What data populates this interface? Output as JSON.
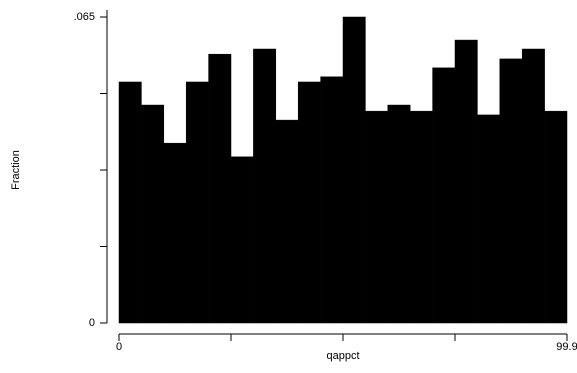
{
  "chart_data": {
    "type": "histogram",
    "y_label": "Fraction",
    "x_label": "qappct",
    "bins": [
      0,
      4.995,
      9.99,
      14.985,
      19.98,
      24.975,
      29.97,
      34.965,
      39.96,
      44.955,
      49.95,
      54.945,
      59.94,
      64.935,
      69.93,
      74.925,
      79.92,
      84.915,
      89.91,
      94.905,
      99.9
    ],
    "values": [
      0.0512,
      0.0463,
      0.0382,
      0.0512,
      0.0571,
      0.0353,
      0.0582,
      0.0431,
      0.0512,
      0.0523,
      0.065,
      0.045,
      0.0463,
      0.045,
      0.0542,
      0.0601,
      0.0442,
      0.0561,
      0.0582,
      0.045
    ],
    "color": "#000000",
    "xlim": [
      0,
      99.9
    ],
    "ylim": [
      0,
      0.065
    ],
    "xticks": [
      0,
      {
        "value": 24.975
      },
      {
        "value": 49.95
      },
      {
        "value": 74.925
      },
      99.9
    ],
    "yticks": [
      0,
      {
        "value": 0.01625
      },
      {
        "value": 0.0325
      },
      {
        "value": 0.04875
      },
      {
        "value": 0.065,
        "label": ".065"
      }
    ]
  }
}
